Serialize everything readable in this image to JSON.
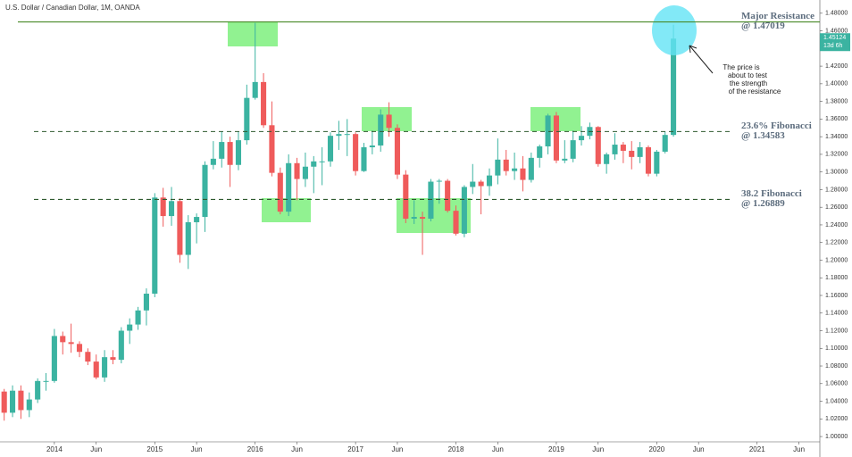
{
  "chart_data": {
    "type": "candlestick",
    "title": "U.S. Dollar / Canadian Dollar, 1M, OANDA",
    "x": [
      "2013-07",
      "2013-08",
      "2013-09",
      "2013-10",
      "2013-11",
      "2013-12",
      "2014-01",
      "2014-02",
      "2014-03",
      "2014-04",
      "2014-05",
      "2014-06",
      "2014-07",
      "2014-08",
      "2014-09",
      "2014-10",
      "2014-11",
      "2014-12",
      "2015-01",
      "2015-02",
      "2015-03",
      "2015-04",
      "2015-05",
      "2015-06",
      "2015-07",
      "2015-08",
      "2015-09",
      "2015-10",
      "2015-11",
      "2015-12",
      "2016-01",
      "2016-02",
      "2016-03",
      "2016-04",
      "2016-05",
      "2016-06",
      "2016-07",
      "2016-08",
      "2016-09",
      "2016-10",
      "2016-11",
      "2016-12",
      "2017-01",
      "2017-02",
      "2017-03",
      "2017-04",
      "2017-05",
      "2017-06",
      "2017-07",
      "2017-08",
      "2017-09",
      "2017-10",
      "2017-11",
      "2017-12",
      "2018-01",
      "2018-02",
      "2018-03",
      "2018-04",
      "2018-05",
      "2018-06",
      "2018-07",
      "2018-08",
      "2018-09",
      "2018-10",
      "2018-11",
      "2018-12",
      "2019-01",
      "2019-02",
      "2019-03",
      "2019-04",
      "2019-05",
      "2019-06",
      "2019-07",
      "2019-08",
      "2019-09",
      "2019-10",
      "2019-11",
      "2019-12",
      "2020-01",
      "2020-02",
      "2020-03"
    ],
    "open": [
      1.051,
      1.027,
      1.052,
      1.03,
      1.042,
      1.063,
      1.063,
      1.114,
      1.107,
      1.105,
      1.096,
      1.085,
      1.067,
      1.09,
      1.087,
      1.12,
      1.127,
      1.143,
      1.162,
      1.271,
      1.25,
      1.267,
      1.206,
      1.243,
      1.249,
      1.308,
      1.315,
      1.334,
      1.308,
      1.336,
      1.384,
      1.402,
      1.353,
      1.299,
      1.255,
      1.31,
      1.292,
      1.306,
      1.312,
      1.312,
      1.341,
      1.343,
      1.343,
      1.301,
      1.328,
      1.33,
      1.365,
      1.35,
      1.297,
      1.247,
      1.249,
      1.247,
      1.289,
      1.29,
      1.256,
      1.23,
      1.283,
      1.289,
      1.284,
      1.296,
      1.314,
      1.301,
      1.304,
      1.291,
      1.316,
      1.329,
      1.364,
      1.313,
      1.315,
      1.336,
      1.341,
      1.351,
      1.309,
      1.32,
      1.331,
      1.324,
      1.317,
      1.328,
      1.298,
      1.323,
      1.342
    ],
    "high": [
      1.054,
      1.058,
      1.058,
      1.05,
      1.066,
      1.072,
      1.122,
      1.119,
      1.128,
      1.108,
      1.1,
      1.093,
      1.098,
      1.098,
      1.124,
      1.134,
      1.147,
      1.168,
      1.276,
      1.282,
      1.283,
      1.27,
      1.251,
      1.253,
      1.312,
      1.335,
      1.346,
      1.34,
      1.346,
      1.399,
      1.469,
      1.412,
      1.38,
      1.305,
      1.32,
      1.316,
      1.322,
      1.318,
      1.328,
      1.345,
      1.358,
      1.36,
      1.345,
      1.333,
      1.347,
      1.371,
      1.379,
      1.354,
      1.302,
      1.268,
      1.255,
      1.292,
      1.292,
      1.292,
      1.262,
      1.285,
      1.309,
      1.291,
      1.304,
      1.338,
      1.325,
      1.322,
      1.318,
      1.322,
      1.331,
      1.366,
      1.368,
      1.336,
      1.347,
      1.352,
      1.356,
      1.352,
      1.322,
      1.344,
      1.334,
      1.335,
      1.334,
      1.33,
      1.325,
      1.346,
      1.467
    ],
    "low": [
      1.018,
      1.022,
      1.02,
      1.022,
      1.038,
      1.052,
      1.061,
      1.093,
      1.095,
      1.09,
      1.081,
      1.065,
      1.062,
      1.082,
      1.083,
      1.105,
      1.121,
      1.126,
      1.158,
      1.238,
      1.239,
      1.197,
      1.19,
      1.219,
      1.232,
      1.303,
      1.305,
      1.283,
      1.302,
      1.331,
      1.382,
      1.35,
      1.295,
      1.252,
      1.25,
      1.268,
      1.283,
      1.276,
      1.285,
      1.306,
      1.325,
      1.318,
      1.296,
      1.3,
      1.32,
      1.323,
      1.34,
      1.292,
      1.242,
      1.241,
      1.206,
      1.244,
      1.264,
      1.254,
      1.228,
      1.226,
      1.275,
      1.252,
      1.273,
      1.286,
      1.296,
      1.291,
      1.278,
      1.288,
      1.305,
      1.32,
      1.31,
      1.31,
      1.311,
      1.33,
      1.337,
      1.306,
      1.298,
      1.314,
      1.31,
      1.303,
      1.31,
      1.295,
      1.295,
      1.321,
      1.34
    ],
    "close": [
      1.027,
      1.052,
      1.03,
      1.042,
      1.063,
      1.063,
      1.114,
      1.107,
      1.105,
      1.096,
      1.085,
      1.067,
      1.09,
      1.087,
      1.12,
      1.127,
      1.143,
      1.162,
      1.271,
      1.25,
      1.267,
      1.206,
      1.243,
      1.249,
      1.308,
      1.315,
      1.334,
      1.308,
      1.336,
      1.384,
      1.402,
      1.353,
      1.299,
      1.255,
      1.31,
      1.292,
      1.306,
      1.312,
      1.312,
      1.341,
      1.343,
      1.343,
      1.301,
      1.328,
      1.33,
      1.365,
      1.35,
      1.297,
      1.247,
      1.249,
      1.247,
      1.289,
      1.29,
      1.256,
      1.23,
      1.283,
      1.289,
      1.284,
      1.296,
      1.314,
      1.301,
      1.304,
      1.291,
      1.316,
      1.329,
      1.364,
      1.313,
      1.315,
      1.336,
      1.341,
      1.351,
      1.309,
      1.32,
      1.331,
      1.324,
      1.317,
      1.328,
      1.298,
      1.323,
      1.342,
      1.45124
    ],
    "up_color": "#3bb3a1",
    "down_color": "#ef5b5b",
    "xlim": [
      "2013-07",
      "2021-08"
    ],
    "xticks": [
      {
        "value": "2014-01",
        "label": "2014"
      },
      {
        "value": "2014-06",
        "label": "Jun"
      },
      {
        "value": "2015-01",
        "label": "2015"
      },
      {
        "value": "2015-06",
        "label": "Jun"
      },
      {
        "value": "2016-01",
        "label": "2016"
      },
      {
        "value": "2016-06",
        "label": "Jun"
      },
      {
        "value": "2017-01",
        "label": "2017"
      },
      {
        "value": "2017-06",
        "label": "Jun"
      },
      {
        "value": "2018-01",
        "label": "2018"
      },
      {
        "value": "2018-06",
        "label": "Jun"
      },
      {
        "value": "2019-01",
        "label": "2019"
      },
      {
        "value": "2019-06",
        "label": "Jun"
      },
      {
        "value": "2020-01",
        "label": "2020"
      },
      {
        "value": "2020-06",
        "label": "Jun"
      },
      {
        "value": "2021-01",
        "label": "2021"
      },
      {
        "value": "2021-06",
        "label": "Jun"
      }
    ],
    "ylim": [
      0.994,
      1.495
    ],
    "yticks": [
      {
        "value": 1.0,
        "label": "1.00000"
      },
      {
        "value": 1.02,
        "label": "1.02000"
      },
      {
        "value": 1.04,
        "label": "1.04000"
      },
      {
        "value": 1.06,
        "label": "1.06000"
      },
      {
        "value": 1.08,
        "label": "1.08000"
      },
      {
        "value": 1.1,
        "label": "1.10000"
      },
      {
        "value": 1.12,
        "label": "1.12000"
      },
      {
        "value": 1.14,
        "label": "1.14000"
      },
      {
        "value": 1.16,
        "label": "1.16000"
      },
      {
        "value": 1.18,
        "label": "1.18000"
      },
      {
        "value": 1.2,
        "label": "1.20000"
      },
      {
        "value": 1.22,
        "label": "1.22000"
      },
      {
        "value": 1.24,
        "label": "1.24000"
      },
      {
        "value": 1.26,
        "label": "1.26000"
      },
      {
        "value": 1.28,
        "label": "1.28000"
      },
      {
        "value": 1.3,
        "label": "1.30000"
      },
      {
        "value": 1.32,
        "label": "1.32000"
      },
      {
        "value": 1.34,
        "label": "1.34000"
      },
      {
        "value": 1.36,
        "label": "1.36000"
      },
      {
        "value": 1.38,
        "label": "1.38000"
      },
      {
        "value": 1.4,
        "label": "1.40000"
      },
      {
        "value": 1.42,
        "label": "1.42000"
      },
      {
        "value": 1.44,
        "label": "1.44000"
      },
      {
        "value": 1.46,
        "label": "1.46000"
      },
      {
        "value": 1.48,
        "label": "1.48000"
      }
    ],
    "levels": [
      {
        "name": "Major Resistance",
        "label": "@ 1.47019",
        "value": 1.47019,
        "color": "#4a8a2a",
        "style": "solid"
      },
      {
        "name": "23.6% Fibonacci",
        "label": "@ 1.34583",
        "value": 1.34583,
        "color": "#2f5a2f",
        "style": "dashed"
      },
      {
        "name": "38.2 Fibonacci",
        "label": "@ 1.26889",
        "value": 1.26889,
        "color": "#2f5a2f",
        "style": "dashed"
      }
    ],
    "annotation": [
      "The price is",
      "about to test",
      "the strength",
      "of the resistance"
    ],
    "countdown": "13d 6h"
  }
}
